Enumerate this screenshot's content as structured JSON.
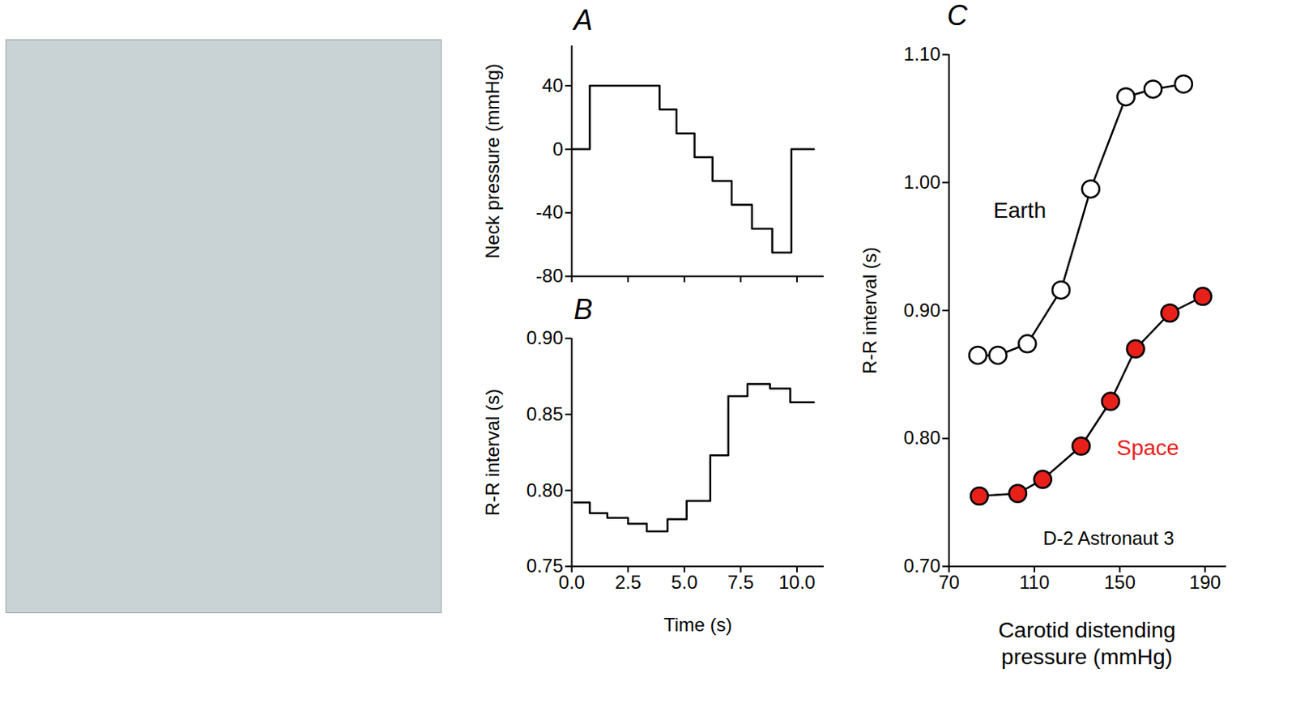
{
  "chart_data": [
    {
      "panel": "A",
      "type": "step",
      "color": "#000000",
      "x": [
        0,
        0.8,
        3.9,
        4.65,
        5.45,
        6.25,
        7.1,
        8.0,
        8.9,
        9.75,
        10.75
      ],
      "values": [
        0,
        40,
        25,
        10,
        -5,
        -20,
        -35,
        -50,
        -65,
        0,
        0
      ],
      "xlim": [
        0,
        11.2
      ],
      "xticks": [
        0,
        2.5,
        5,
        7.5,
        10
      ],
      "ylim": [
        -80,
        65
      ],
      "yticks": [
        -80,
        -40,
        0,
        40
      ],
      "ylabel": "Neck pressure (mmHg)",
      "tick_labels": "y"
    },
    {
      "panel": "B",
      "type": "step",
      "color": "#000000",
      "x": [
        0.1,
        0.8,
        1.58,
        2.5,
        3.33,
        4.25,
        5.1,
        6.15,
        6.95,
        7.8,
        8.8,
        9.7,
        10.75
      ],
      "values": [
        0.792,
        0.785,
        0.782,
        0.778,
        0.773,
        0.781,
        0.793,
        0.823,
        0.862,
        0.87,
        0.867,
        0.858,
        0.858
      ],
      "xlim": [
        0,
        11.2
      ],
      "xticks": [
        {
          "value": 0,
          "label": "0.0"
        },
        {
          "value": 2.5,
          "label": "2.5"
        },
        {
          "value": 5,
          "label": "5.0"
        },
        {
          "value": 7.5,
          "label": "7.5"
        },
        {
          "value": 10,
          "label": "10.0"
        }
      ],
      "ylim": [
        0.75,
        0.9
      ],
      "yticks": [
        {
          "value": 0.75,
          "label": "0.75"
        },
        {
          "value": 0.8,
          "label": "0.80"
        },
        {
          "value": 0.85,
          "label": "0.85"
        },
        {
          "value": 0.9,
          "label": "0.90"
        }
      ],
      "xlabel": "Time (s)",
      "ylabel": "R-R interval (s)"
    },
    {
      "panel": "C",
      "type": "line",
      "series": [
        {
          "name": "Earth",
          "color": "#ffffff",
          "marker": "circle",
          "x": [
            83.5,
            92.9,
            106.7,
            122.5,
            136.4,
            152.9,
            165.6,
            179.9
          ],
          "values": [
            0.865,
            0.865,
            0.874,
            0.916,
            0.995,
            1.067,
            1.073,
            1.077
          ]
        },
        {
          "name": "Space",
          "color": "#e8201a",
          "marker": "circle",
          "x": [
            84.2,
            102.2,
            113.9,
            131.9,
            145.7,
            157.4,
            173.5,
            188.9
          ],
          "values": [
            0.755,
            0.757,
            0.768,
            0.794,
            0.829,
            0.87,
            0.898,
            0.911
          ]
        }
      ],
      "xlim": [
        70,
        200
      ],
      "xticks": [
        70,
        110,
        150,
        190
      ],
      "ylim": [
        0.7,
        1.1
      ],
      "yticks": [
        {
          "value": 0.7,
          "label": "0.70"
        },
        {
          "value": 0.8,
          "label": "0.80"
        },
        {
          "value": 0.9,
          "label": "0.90"
        },
        {
          "value": 1.0,
          "label": "1.00"
        },
        {
          "value": 1.1,
          "label": "1.10"
        }
      ],
      "xlabel": "Carotid distending pressure (mmHg)",
      "ylabel": "R-R interval (s)",
      "annotations": [
        "D-2 Astronaut 3"
      ]
    }
  ]
}
